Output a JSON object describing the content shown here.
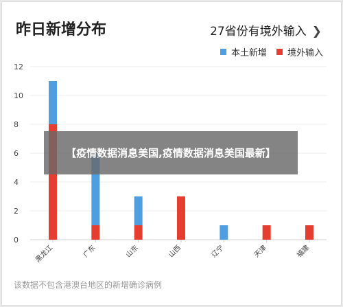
{
  "title": "昨日新增分布",
  "summary_link": "27省份有境外输入",
  "footnote": "该数据不包含港澳台地区的新增确诊病例",
  "overlay_text": "【疫情数据消息美国,疫情数据消息美国最新】",
  "colors": {
    "local": "#4f9fe0",
    "imported": "#e53d2f"
  },
  "chart_data": {
    "type": "bar",
    "stacked": true,
    "categories": [
      "黑龙江",
      "广东",
      "山东",
      "山西",
      "辽宁",
      "天津",
      "福建"
    ],
    "series": [
      {
        "name": "境外输入",
        "values": [
          8,
          1,
          1,
          3,
          0,
          1,
          1
        ]
      },
      {
        "name": "本土新增",
        "values": [
          3,
          5,
          2,
          0,
          1,
          0,
          0
        ]
      }
    ],
    "ylim": [
      0,
      12
    ],
    "yticks": [
      "0",
      "2",
      "4",
      "6",
      "8",
      "10",
      "12"
    ],
    "legend": "top-right",
    "grid": true
  }
}
